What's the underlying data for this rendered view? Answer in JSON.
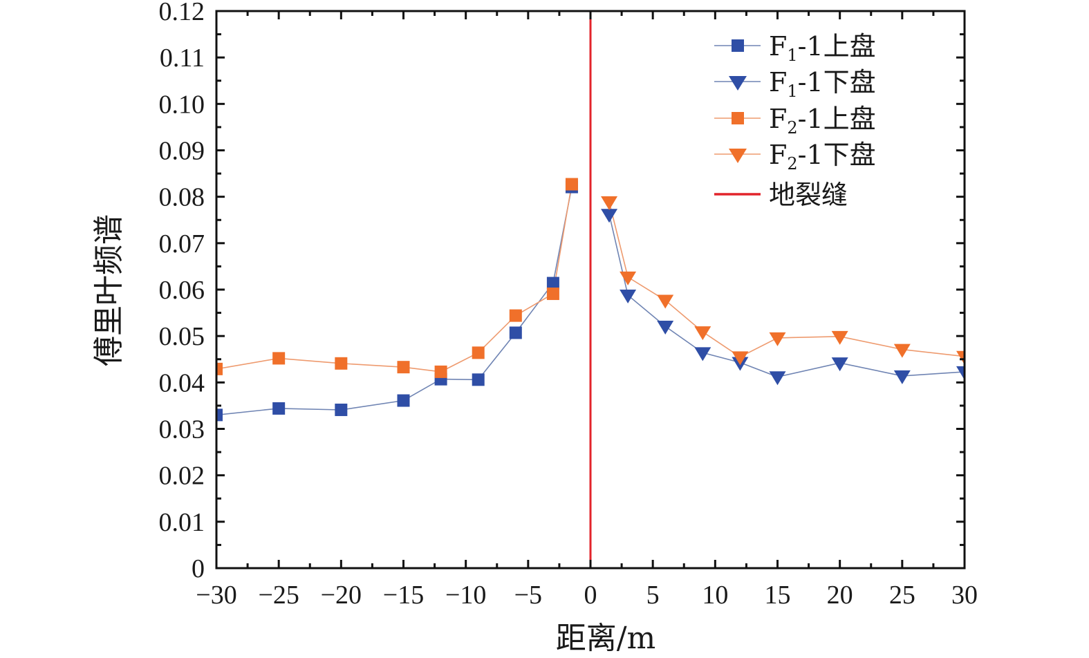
{
  "chart_data": {
    "type": "line",
    "title": "",
    "xlabel": "距离/m",
    "ylabel": "傅里叶频谱",
    "xlim": [
      -30,
      30
    ],
    "ylim": [
      0,
      0.12
    ],
    "grid": false,
    "legend_position": "top-right",
    "x_ticks": [
      -30,
      -25,
      -20,
      -15,
      -10,
      -5,
      0,
      5,
      10,
      15,
      20,
      25,
      30
    ],
    "x_tick_labels": [
      "−30",
      "−25",
      "−20",
      "−15",
      "−10",
      "−5",
      "0",
      "5",
      "10",
      "15",
      "20",
      "25",
      "30"
    ],
    "y_ticks": [
      0,
      0.01,
      0.02,
      0.03,
      0.04,
      0.05,
      0.06,
      0.07,
      0.08,
      0.09,
      0.1,
      0.11,
      0.12
    ],
    "y_tick_labels": [
      "0",
      "0.01",
      "0.02",
      "0.03",
      "0.04",
      "0.05",
      "0.06",
      "0.07",
      "0.08",
      "0.09",
      "0.10",
      "0.11",
      "0.12"
    ],
    "series": [
      {
        "name": "F1-1上盘",
        "legend": {
          "base": "F",
          "sub": "1",
          "rest": "-1上盘"
        },
        "marker": "square",
        "color": "#2F4EA6",
        "line_color": "#6F84B3",
        "x": [
          -30,
          -25,
          -20,
          -15,
          -12,
          -9,
          -6,
          -3,
          -1.5
        ],
        "y": [
          0.033,
          0.0344,
          0.0341,
          0.0361,
          0.0407,
          0.0406,
          0.0507,
          0.0614,
          0.0821
        ]
      },
      {
        "name": "F1-1下盘",
        "legend": {
          "base": "F",
          "sub": "1",
          "rest": "-1下盘"
        },
        "marker": "triangle-down",
        "color": "#2F4EA6",
        "line_color": "#6F84B3",
        "x": [
          1.5,
          3,
          6,
          9,
          12,
          15,
          20,
          25,
          30
        ],
        "y": [
          0.0762,
          0.0588,
          0.0521,
          0.0464,
          0.0443,
          0.0412,
          0.0442,
          0.0414,
          0.0423
        ]
      },
      {
        "name": "F2-1上盘",
        "legend": {
          "base": "F",
          "sub": "2",
          "rest": "-1上盘"
        },
        "marker": "square",
        "color": "#F0702A",
        "line_color": "#EE9A6E",
        "x": [
          -30,
          -25,
          -20,
          -15,
          -12,
          -9,
          -6,
          -3,
          -1.5
        ],
        "y": [
          0.0429,
          0.0452,
          0.0441,
          0.0433,
          0.0423,
          0.0464,
          0.0544,
          0.0591,
          0.0827
        ]
      },
      {
        "name": "F2-1下盘",
        "legend": {
          "base": "F",
          "sub": "2",
          "rest": "-1下盘"
        },
        "marker": "triangle-down",
        "color": "#F0702A",
        "line_color": "#EE9A6E",
        "x": [
          1.5,
          3,
          6,
          9,
          12,
          15,
          20,
          25,
          30
        ],
        "y": [
          0.0789,
          0.0627,
          0.0577,
          0.0509,
          0.0455,
          0.0496,
          0.0499,
          0.0471,
          0.0456
        ]
      }
    ],
    "reference_line": {
      "name": "地裂缝",
      "x": 0,
      "color": "#E2242B"
    }
  }
}
